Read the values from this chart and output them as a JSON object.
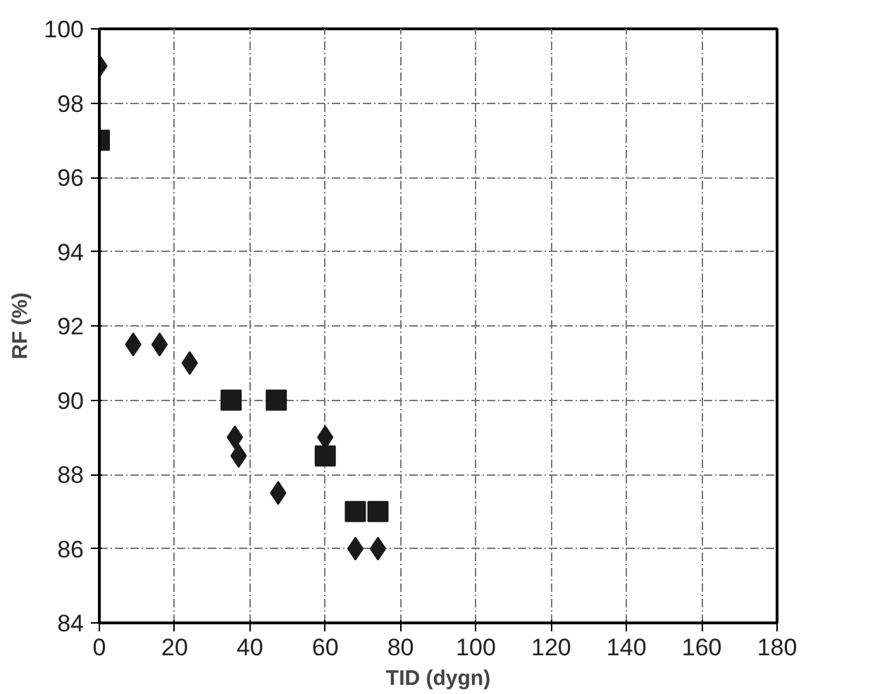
{
  "chart_data": {
    "type": "scatter",
    "xlabel": "TID (dygn)",
    "ylabel": "RF (%)",
    "xlim": [
      0,
      180
    ],
    "xticks": [
      0,
      20,
      40,
      60,
      80,
      100,
      120,
      140,
      160,
      180
    ],
    "ylim": [
      84,
      100
    ],
    "yticks": [
      84,
      86,
      88,
      90,
      92,
      94,
      96,
      98,
      100
    ],
    "grid": true,
    "series": [
      {
        "color": "#1a1a1a",
        "marker": "diamond",
        "x": [
          0,
          9,
          16,
          24,
          36,
          37,
          47.5,
          60,
          68,
          74
        ],
        "values": [
          99,
          91.5,
          91.5,
          91,
          89,
          88.5,
          87.5,
          89,
          86,
          86
        ]
      },
      {
        "color": "#1a1a1a",
        "marker": "square",
        "x": [
          0,
          35,
          47,
          60,
          68,
          74
        ],
        "values": [
          97,
          90,
          90,
          88.5,
          87,
          87
        ]
      }
    ]
  }
}
